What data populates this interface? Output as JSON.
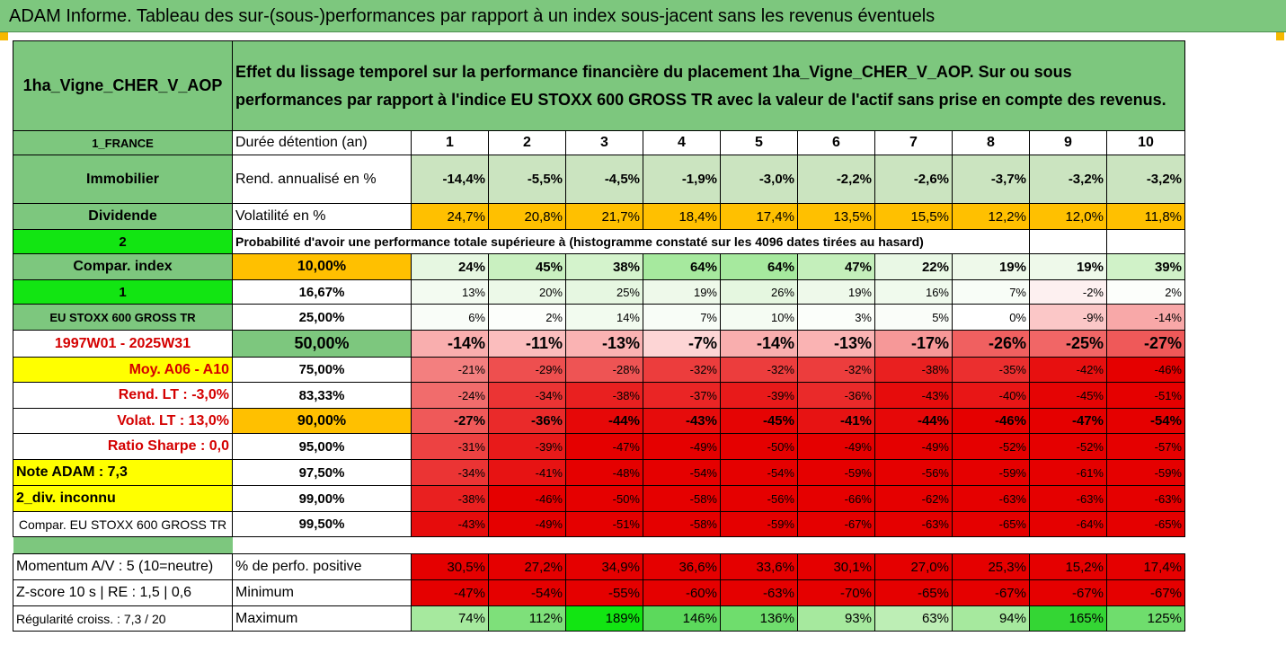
{
  "title": "ADAM Informe. Tableau des sur-(sous-)performances par rapport à un index sous-jacent sans les revenus éventuels",
  "header": {
    "asset": "1ha_Vigne_CHER_V_AOP",
    "description": "Effet du lissage temporel sur la performance financière du placement 1ha_Vigne_CHER_V_AOP. Sur ou sous performances par rapport à l'indice EU STOXX 600 GROSS TR avec la valeur de l'actif sans prise en compte des revenus."
  },
  "colors": {
    "header_green": "#7dc77e",
    "lime": "#12e512",
    "yellow": "#ffff00",
    "orange": "#ffc000",
    "label_red": "#d40000"
  },
  "periods_row": {
    "left": "1_FRANCE",
    "label": "Durée détention (an)",
    "values": [
      "1",
      "2",
      "3",
      "4",
      "5",
      "6",
      "7",
      "8",
      "9",
      "10"
    ]
  },
  "rend_row": {
    "left": "Immobilier",
    "label": "Rend. annualisé en %",
    "values": [
      "-14,4%",
      "-5,5%",
      "-4,5%",
      "-1,9%",
      "-3,0%",
      "-2,2%",
      "-2,6%",
      "-3,7%",
      "-3,2%",
      "-3,2%"
    ],
    "colors": [
      "#cbe4c0",
      "#cbe4c0",
      "#cbe4c0",
      "#cbe4c0",
      "#cbe4c0",
      "#cbe4c0",
      "#cbe4c0",
      "#cbe4c0",
      "#cbe4c0",
      "#cbe4c0"
    ]
  },
  "vol_row": {
    "left": "Dividende",
    "label": "Volatilité en %",
    "values": [
      "24,7%",
      "20,8%",
      "21,7%",
      "18,4%",
      "17,4%",
      "13,5%",
      "15,5%",
      "12,2%",
      "12,0%",
      "11,8%"
    ]
  },
  "proba_row": {
    "left": "2",
    "text": "Probabilité d'avoir une performance totale supérieure à (histogramme constaté sur les 4096 dates tirées au hasard)"
  },
  "prob_rows": [
    {
      "left": "Compar. index",
      "threshold": "10,00%",
      "values": [
        "24%",
        "45%",
        "38%",
        "64%",
        "64%",
        "47%",
        "22%",
        "19%",
        "19%",
        "39%"
      ],
      "colors": [
        "#e6f7e1",
        "#c9f0c0",
        "#d4f3cc",
        "#a6e99e",
        "#a6e99e",
        "#c4efbb",
        "#e9f8e5",
        "#eef9ea",
        "#eef9ea",
        "#d0f2c8"
      ]
    },
    {
      "left": "1",
      "threshold": "16,67%",
      "values": [
        "13%",
        "20%",
        "25%",
        "19%",
        "26%",
        "19%",
        "16%",
        "7%",
        "-2%",
        "2%"
      ],
      "colors": [
        "#f3fbf1",
        "#ecf9e8",
        "#e6f7e1",
        "#eef9ea",
        "#e5f7e0",
        "#eef9ea",
        "#f0faed",
        "#f8fdf7",
        "#fdf0f0",
        "#fcfefb"
      ]
    },
    {
      "left": "EU STOXX 600 GROSS TR",
      "threshold": "25,00%",
      "values": [
        "6%",
        "2%",
        "14%",
        "7%",
        "10%",
        "3%",
        "5%",
        "0%",
        "-9%",
        "-14%"
      ],
      "colors": [
        "#f9fdf8",
        "#fcfefb",
        "#f2fbef",
        "#f8fdf7",
        "#f5fcf3",
        "#fbfefa",
        "#fafdf9",
        "#ffffff",
        "#fbc7c7",
        "#f8a8a8"
      ]
    },
    {
      "left": "1997W01 - 2025W31",
      "threshold": "50,00%",
      "values": [
        "-14%",
        "-11%",
        "-13%",
        "-7%",
        "-14%",
        "-13%",
        "-17%",
        "-26%",
        "-25%",
        "-27%"
      ],
      "colors": [
        "#f9aeae",
        "#fbbdbd",
        "#fab3b3",
        "#fdd5d5",
        "#f9aeae",
        "#fab3b3",
        "#f69898",
        "#f06060",
        "#f16666",
        "#ef5959"
      ]
    },
    {
      "left": "Moy. A06 - A10",
      "threshold": "75,00%",
      "values": [
        "-21%",
        "-29%",
        "-28%",
        "-32%",
        "-32%",
        "-32%",
        "-38%",
        "-35%",
        "-42%",
        "-46%"
      ],
      "colors": [
        "#f37f7f",
        "#ee4f4f",
        "#ee5454",
        "#ec3d3d",
        "#ec3d3d",
        "#ec3d3d",
        "#e92020",
        "#eb2f2f",
        "#e71010",
        "#e50000"
      ]
    },
    {
      "left": "Rend. LT :   -3,0%",
      "threshold": "83,33%",
      "values": [
        "-24%",
        "-34%",
        "-38%",
        "-37%",
        "-39%",
        "-36%",
        "-43%",
        "-40%",
        "-45%",
        "-51%"
      ],
      "colors": [
        "#f16c6c",
        "#eb3434",
        "#e92020",
        "#ea2525",
        "#e81a1a",
        "#ea2a2a",
        "#e60c0c",
        "#e81616",
        "#e50404",
        "#e50000"
      ]
    },
    {
      "left": "Volat. LT :   13,0%",
      "threshold": "90,00%",
      "values": [
        "-27%",
        "-36%",
        "-44%",
        "-43%",
        "-45%",
        "-41%",
        "-44%",
        "-46%",
        "-47%",
        "-54%"
      ],
      "colors": [
        "#ef5959",
        "#ea2a2a",
        "#e60808",
        "#e60c0c",
        "#e50404",
        "#e71313",
        "#e60808",
        "#e50000",
        "#e50000",
        "#e50000"
      ]
    },
    {
      "left": "Ratio Sharpe :    0,0",
      "threshold": "95,00%",
      "values": [
        "-31%",
        "-39%",
        "-47%",
        "-49%",
        "-50%",
        "-49%",
        "-49%",
        "-52%",
        "-52%",
        "-57%"
      ],
      "colors": [
        "#ed4242",
        "#e81a1a",
        "#e50000",
        "#e50000",
        "#e50000",
        "#e50000",
        "#e50000",
        "#e50000",
        "#e50000",
        "#e50000"
      ]
    },
    {
      "left": "Note ADAM : 7,3",
      "threshold": "97,50%",
      "values": [
        "-34%",
        "-41%",
        "-48%",
        "-54%",
        "-54%",
        "-59%",
        "-56%",
        "-59%",
        "-61%",
        "-59%"
      ],
      "colors": [
        "#eb3434",
        "#e71313",
        "#e50000",
        "#e50000",
        "#e50000",
        "#e50000",
        "#e50000",
        "#e50000",
        "#e50000",
        "#e50000"
      ]
    },
    {
      "left": "2_div. inconnu",
      "threshold": "99,00%",
      "values": [
        "-38%",
        "-46%",
        "-50%",
        "-58%",
        "-56%",
        "-66%",
        "-62%",
        "-63%",
        "-63%",
        "-63%"
      ],
      "colors": [
        "#e92020",
        "#e50000",
        "#e50000",
        "#e50000",
        "#e50000",
        "#e50000",
        "#e50000",
        "#e50000",
        "#e50000",
        "#e50000"
      ]
    },
    {
      "left": "Compar. EU STOXX 600 GROSS TR",
      "threshold": "99,50%",
      "values": [
        "-43%",
        "-49%",
        "-51%",
        "-58%",
        "-59%",
        "-67%",
        "-63%",
        "-65%",
        "-64%",
        "-65%"
      ],
      "colors": [
        "#e60c0c",
        "#e50000",
        "#e50000",
        "#e50000",
        "#e50000",
        "#e50000",
        "#e50000",
        "#e50000",
        "#e50000",
        "#e50000"
      ]
    }
  ],
  "momentum_row": {
    "left": "Momentum A/V : 5 (10=neutre)",
    "label": "% de perfo. positive",
    "values": [
      "30,5%",
      "27,2%",
      "34,9%",
      "36,6%",
      "33,6%",
      "30,1%",
      "27,0%",
      "25,3%",
      "15,2%",
      "17,4%"
    ]
  },
  "min_row": {
    "left": "Z-score 10 s  |  RE : 1,5  |  0,6",
    "label": "Minimum",
    "values": [
      "-47%",
      "-54%",
      "-55%",
      "-60%",
      "-63%",
      "-70%",
      "-65%",
      "-67%",
      "-67%",
      "-67%"
    ]
  },
  "max_row": {
    "left": "Régularité croiss. : 7,3 / 20",
    "label": "Maximum",
    "values": [
      "74%",
      "112%",
      "189%",
      "146%",
      "136%",
      "93%",
      "63%",
      "94%",
      "165%",
      "125%"
    ],
    "colors": [
      "#a6e99e",
      "#7ee07a",
      "#12e512",
      "#5cd95c",
      "#6fdd6d",
      "#a6e99e",
      "#bdeeb5",
      "#a6e99e",
      "#34d634",
      "#6fdd6d"
    ]
  }
}
